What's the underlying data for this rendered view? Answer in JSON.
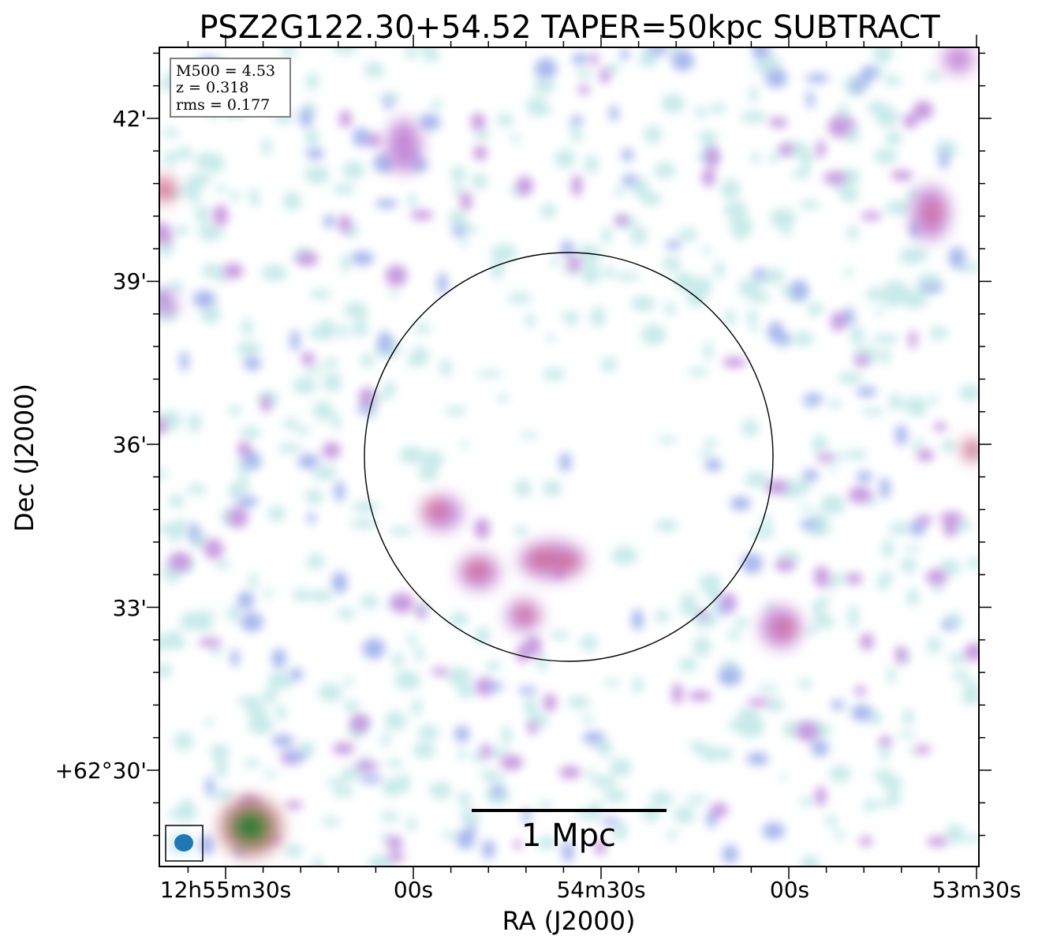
{
  "title": "PSZ2G122.30+54.52 TAPER=50kpc SUBTRACT",
  "info_box": {
    "m500": "M500 = 4.53",
    "z": "z = 0.318",
    "rms": "rms = 0.177"
  },
  "axes": {
    "xlabel": "RA (J2000)",
    "ylabel": "Dec (J2000)",
    "xticks": [
      "12h55m30s",
      "00s",
      "54m30s",
      "00s",
      "53m30s"
    ],
    "yticks": [
      "42'",
      "39'",
      "36'",
      "33'",
      "+62°30'"
    ]
  },
  "scale_bar": {
    "label": "1 Mpc"
  },
  "colors": {
    "faint": "#bfe6e6",
    "low": "#a9b8ee",
    "mid": "#c79be0",
    "high": "#d46b8c",
    "peak": "#1f7a3c",
    "beam": "#1f77b4"
  }
}
